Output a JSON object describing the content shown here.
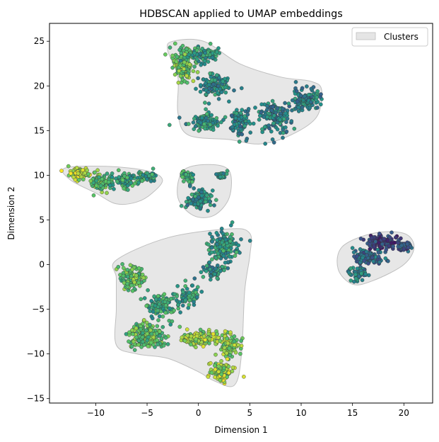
{
  "chart_data": {
    "type": "scatter",
    "title": "HDBSCAN applied to UMAP embeddings",
    "xlabel": "Dimension 1",
    "ylabel": "Dimension 2",
    "xlim": [
      -14.5,
      22.8
    ],
    "ylim": [
      -15.5,
      27
    ],
    "xticks": [
      -10,
      -5,
      0,
      5,
      10,
      15,
      20
    ],
    "yticks": [
      -15,
      -10,
      -5,
      0,
      5,
      10,
      15,
      20,
      25
    ],
    "grid": false,
    "legend": {
      "position": "top-right",
      "entries": [
        "Clusters"
      ]
    },
    "colormap": "viridis",
    "hull_color": "#d3d3d3",
    "point_edge_color": "#333333",
    "clusters": [
      {
        "hull": [
          [
            -2.5,
            25
          ],
          [
            0.5,
            25
          ],
          [
            4,
            22.5
          ],
          [
            8,
            21
          ],
          [
            11,
            20.5
          ],
          [
            12,
            19.5
          ],
          [
            11.5,
            16.5
          ],
          [
            9,
            14.5
          ],
          [
            6,
            13.5
          ],
          [
            3,
            14
          ],
          [
            -1,
            14.5
          ],
          [
            -2,
            17
          ],
          [
            -2,
            21
          ],
          [
            -3,
            24
          ]
        ],
        "blobs": [
          {
            "center": [
              -1.5,
              22.5
            ],
            "spread": [
              0.9,
              1.6
            ],
            "n": 170,
            "color": 0.75
          },
          {
            "center": [
              0.5,
              23.5
            ],
            "spread": [
              1.2,
              0.8
            ],
            "n": 90,
            "color": 0.55
          },
          {
            "center": [
              1.5,
              20
            ],
            "spread": [
              1.5,
              1.2
            ],
            "n": 110,
            "color": 0.5
          },
          {
            "center": [
              0.5,
              16
            ],
            "spread": [
              1.5,
              0.8
            ],
            "n": 110,
            "color": 0.52
          },
          {
            "center": [
              4,
              16
            ],
            "spread": [
              0.9,
              1.4
            ],
            "n": 90,
            "color": 0.45
          },
          {
            "center": [
              7.5,
              16.5
            ],
            "spread": [
              1.6,
              1.6
            ],
            "n": 130,
            "color": 0.45
          },
          {
            "center": [
              10.5,
              18.5
            ],
            "spread": [
              1.2,
              1.0
            ],
            "n": 120,
            "color": 0.45
          }
        ]
      },
      {
        "hull": [
          [
            -13,
            10.8
          ],
          [
            -9,
            11
          ],
          [
            -5,
            10.5
          ],
          [
            -3.5,
            9.5
          ],
          [
            -4.5,
            8
          ],
          [
            -6,
            7
          ],
          [
            -8,
            6.8
          ],
          [
            -10,
            8
          ],
          [
            -12.5,
            9.5
          ]
        ],
        "blobs": [
          {
            "center": [
              -11.5,
              10.2
            ],
            "spread": [
              1.0,
              0.6
            ],
            "n": 80,
            "color": 0.88
          },
          {
            "center": [
              -9.5,
              9.2
            ],
            "spread": [
              1.0,
              0.9
            ],
            "n": 80,
            "color": 0.72
          },
          {
            "center": [
              -7,
              9.5
            ],
            "spread": [
              1.2,
              0.8
            ],
            "n": 90,
            "color": 0.6
          },
          {
            "center": [
              -5,
              9.8
            ],
            "spread": [
              0.8,
              0.5
            ],
            "n": 50,
            "color": 0.58
          }
        ]
      },
      {
        "hull": [
          [
            -1.5,
            10.5
          ],
          [
            1,
            11.2
          ],
          [
            3,
            10.5
          ],
          [
            3,
            7.5
          ],
          [
            1.5,
            5.5
          ],
          [
            -0.5,
            5.5
          ],
          [
            -2,
            7.5
          ]
        ],
        "blobs": [
          {
            "center": [
              -1,
              9.8
            ],
            "spread": [
              0.6,
              0.6
            ],
            "n": 40,
            "color": 0.6
          },
          {
            "center": [
              0,
              7.2
            ],
            "spread": [
              1.0,
              1.0
            ],
            "n": 100,
            "color": 0.5
          },
          {
            "center": [
              2.2,
              10
            ],
            "spread": [
              0.5,
              0.5
            ],
            "n": 30,
            "color": 0.5
          }
        ]
      },
      {
        "hull": [
          [
            14,
            2
          ],
          [
            17,
            3.5
          ],
          [
            20,
            3.5
          ],
          [
            21,
            2
          ],
          [
            20,
            0
          ],
          [
            17,
            -1.8
          ],
          [
            15,
            -2.2
          ],
          [
            13.6,
            -0.5
          ]
        ],
        "blobs": [
          {
            "center": [
              18,
              2.5
            ],
            "spread": [
              1.5,
              0.7
            ],
            "n": 120,
            "color": 0.2
          },
          {
            "center": [
              16.5,
              0.8
            ],
            "spread": [
              1.3,
              0.9
            ],
            "n": 120,
            "color": 0.35
          },
          {
            "center": [
              15.5,
              -1
            ],
            "spread": [
              0.8,
              0.6
            ],
            "n": 60,
            "color": 0.45
          },
          {
            "center": [
              20,
              2
            ],
            "spread": [
              0.6,
              0.6
            ],
            "n": 40,
            "color": 0.25
          }
        ]
      },
      {
        "hull": [
          [
            -8,
            0.5
          ],
          [
            -3,
            3
          ],
          [
            3,
            4
          ],
          [
            5,
            3.5
          ],
          [
            5,
            1
          ],
          [
            4.5,
            -3
          ],
          [
            4.2,
            -10
          ],
          [
            3.5,
            -13.5
          ],
          [
            1.5,
            -13
          ],
          [
            0,
            -12
          ],
          [
            -3,
            -10.5
          ],
          [
            -6,
            -10
          ],
          [
            -8,
            -9
          ],
          [
            -8,
            -5
          ],
          [
            -8,
            -1.5
          ]
        ],
        "blobs": [
          {
            "center": [
              2.5,
              2.0
            ],
            "spread": [
              1.2,
              1.5
            ],
            "n": 170,
            "color": 0.55
          },
          {
            "center": [
              1.5,
              -0.8
            ],
            "spread": [
              1.0,
              0.8
            ],
            "n": 60,
            "color": 0.5
          },
          {
            "center": [
              -6.5,
              -1.5
            ],
            "spread": [
              1.2,
              1.2
            ],
            "n": 110,
            "color": 0.72
          },
          {
            "center": [
              -3.5,
              -4.5
            ],
            "spread": [
              1.3,
              1.3
            ],
            "n": 100,
            "color": 0.6
          },
          {
            "center": [
              -1,
              -3.5
            ],
            "spread": [
              1.0,
              1.2
            ],
            "n": 60,
            "color": 0.55
          },
          {
            "center": [
              -5,
              -8
            ],
            "spread": [
              1.6,
              1.2
            ],
            "n": 220,
            "color": 0.72
          },
          {
            "center": [
              0,
              -8.2
            ],
            "spread": [
              1.4,
              0.7
            ],
            "n": 130,
            "color": 0.82
          },
          {
            "center": [
              3,
              -9
            ],
            "spread": [
              1.0,
              1.0
            ],
            "n": 110,
            "color": 0.8
          },
          {
            "center": [
              2.3,
              -12
            ],
            "spread": [
              0.9,
              1.1
            ],
            "n": 110,
            "color": 0.85
          }
        ]
      }
    ]
  }
}
